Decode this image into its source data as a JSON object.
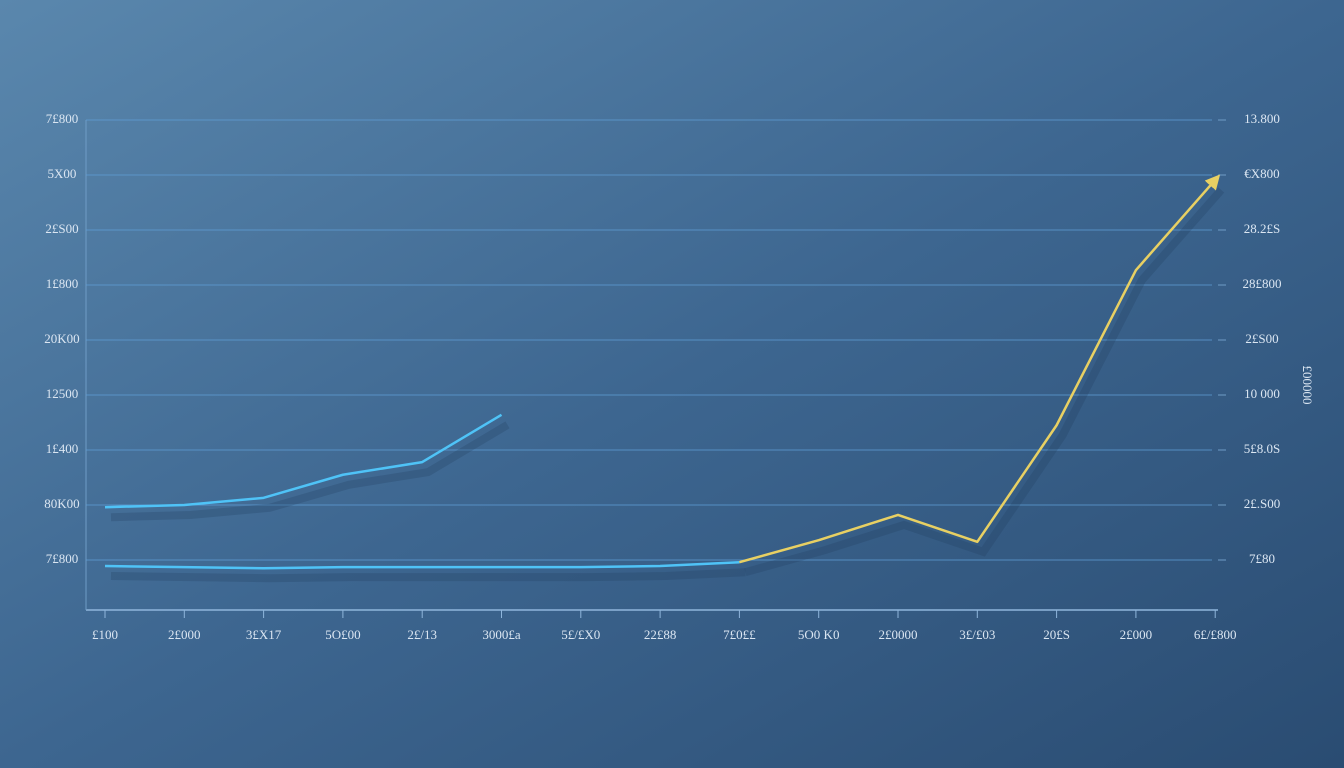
{
  "chart_data": {
    "type": "line",
    "categories": [
      "£100",
      "2£000",
      "3£X17",
      "5O£00",
      "2£/13",
      "3000£a",
      "5£/£X0",
      "22£88",
      "7£0££",
      "5O0 K0",
      "2£0000",
      "3£/£03",
      "20£S",
      "2£000",
      "6£/£800"
    ],
    "series": [
      {
        "color": "#4fc3f7",
        "values": [
          1.96,
          2.0,
          2.13,
          2.55,
          2.78,
          3.64,
          null,
          null,
          null,
          null,
          null,
          null,
          null,
          null,
          null
        ]
      },
      {
        "color": "#4fc3f7",
        "values": [
          0.89,
          0.87,
          0.85,
          0.87,
          0.87,
          0.87,
          0.87,
          0.89,
          0.96,
          null,
          null,
          null,
          null,
          null,
          null
        ]
      },
      {
        "color": "#e8d063",
        "values": [
          null,
          null,
          null,
          null,
          null,
          null,
          null,
          null,
          0.96,
          1.36,
          1.82,
          1.33,
          3.45,
          6.27,
          7.91
        ],
        "axis": "y2"
      }
    ],
    "ylim": [
      0,
      9.2
    ],
    "yticks": [
      {
        "value": 1,
        "label": "7£800"
      },
      {
        "value": 2,
        "label": "80K00"
      },
      {
        "value": 3,
        "label": "1£400"
      },
      {
        "value": 4,
        "label": "12500"
      },
      {
        "value": 5,
        "label": "20K00"
      },
      {
        "value": 6,
        "label": "1£800"
      },
      {
        "value": 7,
        "label": "2£S00"
      },
      {
        "value": 8,
        "label": "5X00"
      },
      {
        "value": 9,
        "label": "7£800"
      }
    ],
    "y2lim": [
      0,
      9.2
    ],
    "y2ticks": [
      {
        "value": 1,
        "label": "7£80"
      },
      {
        "value": 2,
        "label": "2£.S00"
      },
      {
        "value": 3,
        "label": "5£8.0S"
      },
      {
        "value": 4,
        "label": "10 000"
      },
      {
        "value": 5,
        "label": "2£S00"
      },
      {
        "value": 6,
        "label": "28£800"
      },
      {
        "value": 7,
        "label": "28.2£S"
      },
      {
        "value": 8,
        "label": "€X800"
      },
      {
        "value": 9,
        "label": "13.800"
      }
    ],
    "y2label": "£00000",
    "grid": true
  }
}
